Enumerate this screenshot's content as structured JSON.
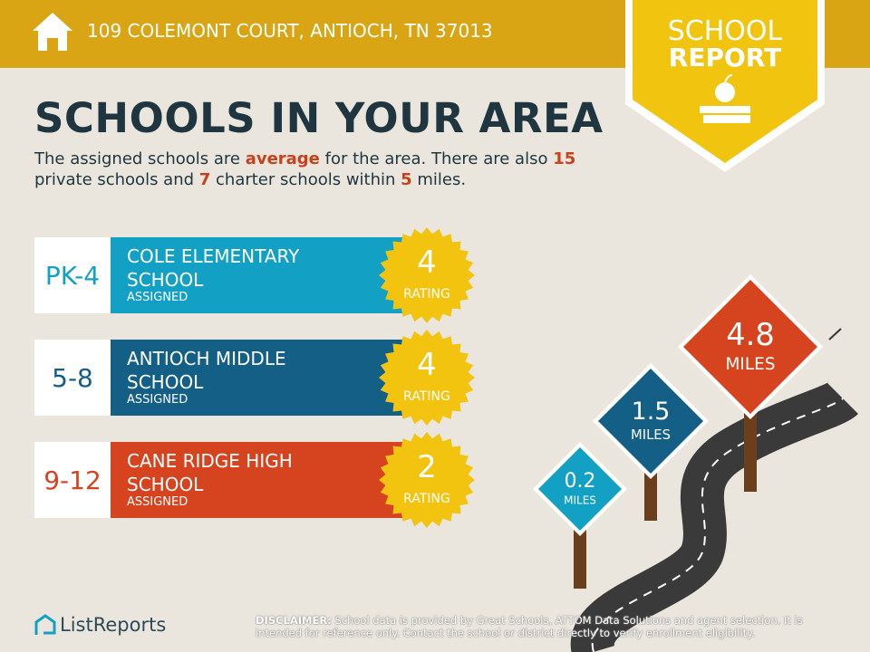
{
  "header": {
    "address": "109 COLEMONT COURT, ANTIOCH, TN 37013",
    "badge_top": "SCHOOL",
    "badge_bottom": "REPORT"
  },
  "title": "SCHOOLS IN YOUR AREA",
  "intro": [
    {
      "text": "The assigned schools are ",
      "highlight": false
    },
    {
      "text": "average",
      "highlight": true
    },
    {
      "text": " for the area. There are also ",
      "highlight": false
    },
    {
      "text": "15",
      "highlight": true
    },
    {
      "text": " private schools and ",
      "highlight": false
    },
    {
      "text": "7",
      "highlight": true
    },
    {
      "text": " charter schools within ",
      "highlight": false
    },
    {
      "text": "5",
      "highlight": true
    },
    {
      "text": " miles.",
      "highlight": false
    }
  ],
  "schools": [
    {
      "grades": "PK-4",
      "name": "COLE ELEMENTARY SCHOOL",
      "status": "ASSIGNED",
      "rating": 4,
      "rating_label": "RATING",
      "color": "#13a0c5"
    },
    {
      "grades": "5-8",
      "name": "ANTIOCH MIDDLE SCHOOL",
      "status": "ASSIGNED",
      "rating": 4,
      "rating_label": "RATING",
      "color": "#135f86"
    },
    {
      "grades": "9-12",
      "name": "CANE RIDGE HIGH SCHOOL",
      "status": "ASSIGNED",
      "rating": 2,
      "rating_label": "RATING",
      "color": "#d5441f"
    }
  ],
  "signs": [
    {
      "distance": 0.2,
      "unit": "MILES",
      "color": "#13a0c5"
    },
    {
      "distance": 1.5,
      "unit": "MILES",
      "color": "#135f86"
    },
    {
      "distance": 4.8,
      "unit": "MILES",
      "color": "#d5441f"
    }
  ],
  "footer": {
    "brand": "ListReports",
    "disclaimer_label": "DISCLAIMER:",
    "disclaimer": "School data is provided by Great Schools, ATTOM Data Solutions and agent selection. It is intended for reference only. Contact the school or district directly to verify enrollment eligibility."
  }
}
